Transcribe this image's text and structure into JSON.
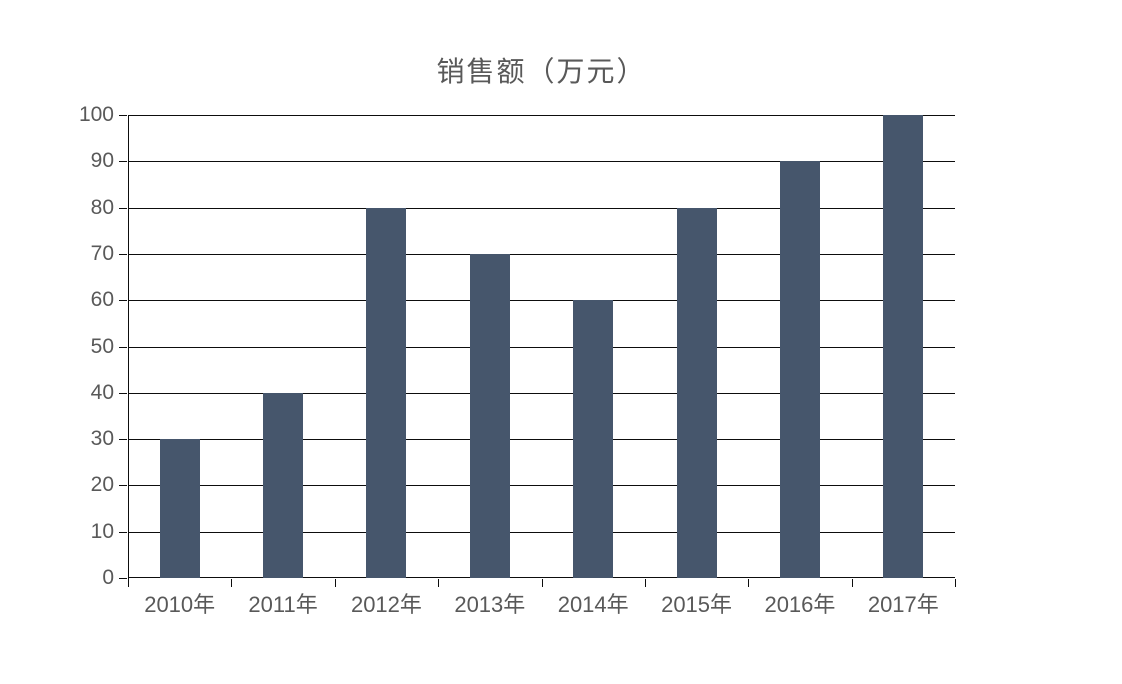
{
  "colors": {
    "bar_fill": "#46566C",
    "axis_line": "#0d0d0d",
    "gridline": "#0d0d0d",
    "tick_text": "#595959",
    "title_text": "#595959",
    "background": "#ffffff"
  },
  "chart_data": {
    "type": "bar",
    "title": "销售额（万元）",
    "categories": [
      "2010年",
      "2011年",
      "2012年",
      "2013年",
      "2014年",
      "2015年",
      "2016年",
      "2017年"
    ],
    "values": [
      30,
      40,
      80,
      70,
      60,
      80,
      90,
      100
    ],
    "xlabel": "",
    "ylabel": "",
    "ylim": [
      0,
      100
    ],
    "ytick_step": 10,
    "yticks": [
      0,
      10,
      20,
      30,
      40,
      50,
      60,
      70,
      80,
      90,
      100
    ],
    "grid": true,
    "legend_position": "none"
  }
}
